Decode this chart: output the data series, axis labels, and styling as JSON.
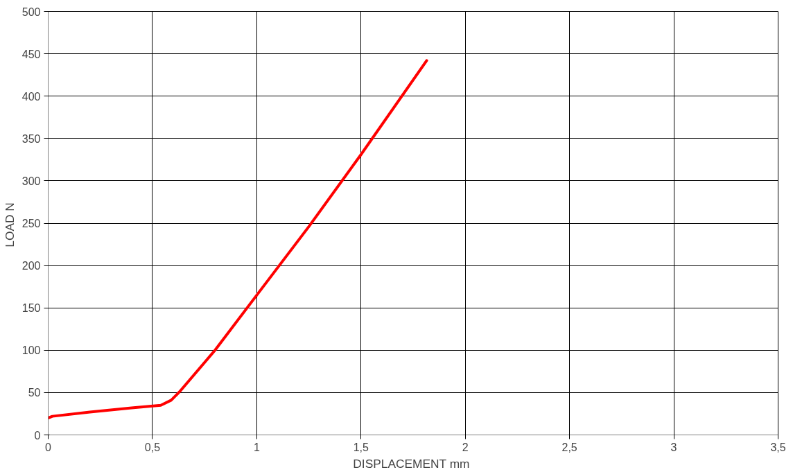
{
  "chart_data": {
    "type": "line",
    "xlabel": "DISPLACEMENT  mm",
    "ylabel": "LOAD  N",
    "series": [
      {
        "color": "#ff0000",
        "x": [
          0,
          0.02,
          0.2,
          0.4,
          0.54,
          0.59,
          0.63,
          0.8,
          1.0,
          1.25,
          1.5,
          1.815
        ],
        "values": [
          20,
          22,
          27,
          32,
          35,
          41,
          51,
          100,
          165,
          246,
          331,
          442
        ]
      }
    ],
    "xlim": [
      0,
      3.5
    ],
    "xticks": [
      0,
      {
        "value": 0.5,
        "label": "0,5"
      },
      1,
      {
        "value": 1.5,
        "label": "1,5"
      },
      2,
      {
        "value": 2.5,
        "label": "2,5"
      },
      3,
      {
        "value": 3.5,
        "label": "3,5"
      }
    ],
    "ylim": [
      0,
      500
    ],
    "yticks": [
      0,
      50,
      100,
      150,
      200,
      250,
      300,
      350,
      400,
      450,
      500
    ],
    "grid": true,
    "marker": "none",
    "line_style": "solid"
  }
}
